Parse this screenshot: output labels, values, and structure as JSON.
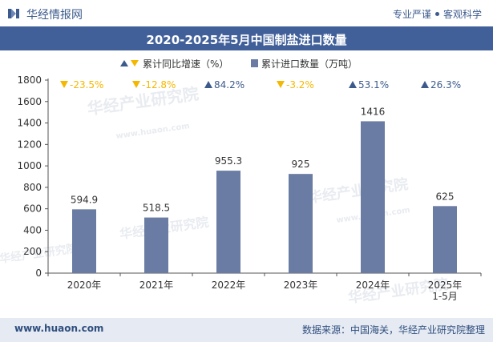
{
  "header": {
    "site_name": "华经情报网",
    "tag_left": "专业严谨",
    "tag_right": "客观科学"
  },
  "watermarks": [
    "华经产业研究院",
    "www.huaon.com"
  ],
  "chart_data": {
    "type": "bar",
    "title": "2020-2025年5月中国制盐进口数量",
    "categories": [
      "2020年",
      "2021年",
      "2022年",
      "2023年",
      "2024年",
      "2025年 1-5月"
    ],
    "series": [
      {
        "name": "累计进口数量（万吨）",
        "type": "bar",
        "values": [
          594.9,
          518.5,
          955.3,
          925,
          1416,
          625
        ],
        "value_labels": [
          "594.9",
          "518.5",
          "955.3",
          "925",
          "1416",
          "625"
        ],
        "color": "#6a7ca3"
      },
      {
        "name": "累计同比增速（%）",
        "type": "marker",
        "values": [
          -23.5,
          -12.8,
          84.2,
          -3.2,
          53.1,
          26.3
        ],
        "value_labels": [
          "-23.5%",
          "-12.8%",
          "84.2%",
          "-3.2%",
          "53.1%",
          "26.3%"
        ],
        "up_color": "#3c5a8c",
        "down_color": "#f5b800"
      }
    ],
    "ylim": [
      0,
      1800
    ],
    "yticks": [
      0,
      200,
      400,
      600,
      800,
      1000,
      1200,
      1400,
      1600,
      1800
    ],
    "xlabel": "",
    "ylabel": "",
    "legend_position": "top",
    "grid": false
  },
  "footer": {
    "website": "www.huaon.com",
    "source": "数据来源：中国海关，华经产业研究院整理"
  }
}
